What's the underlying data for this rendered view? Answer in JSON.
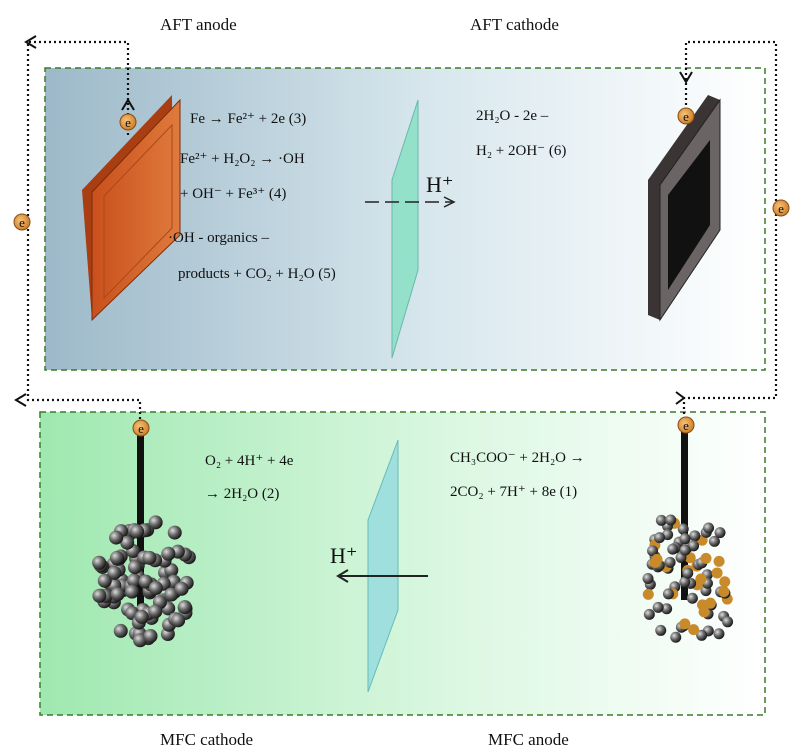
{
  "labels": {
    "aft_anode": "AFT  anode",
    "aft_cathode": "AFT  cathode",
    "mfc_cathode": "MFC cathode",
    "mfc_anode": "MFC anode"
  },
  "electron": "e",
  "proton": "H⁺",
  "aft_anode_equations": [
    "Fe → Fe²⁺ + 2e  (3)",
    "Fe²⁺ + H₂O₂ → ·OH",
    "+ OH⁻ + Fe³⁺     (4)",
    "·OH - organics –",
    "products + CO₂ + H₂O (5)"
  ],
  "aft_cathode_equations": [
    "2H₂O - 2e –",
    "H₂ + 2OH⁻   (6)"
  ],
  "mfc_cathode_equations": [
    "O₂ + 4H⁺ + 4e",
    "→ 2H₂O  (2)"
  ],
  "mfc_anode_equations": [
    "CH₃COO⁻ + 2H₂O →",
    "2CO₂ + 7H⁺ + 8e (1)"
  ]
}
